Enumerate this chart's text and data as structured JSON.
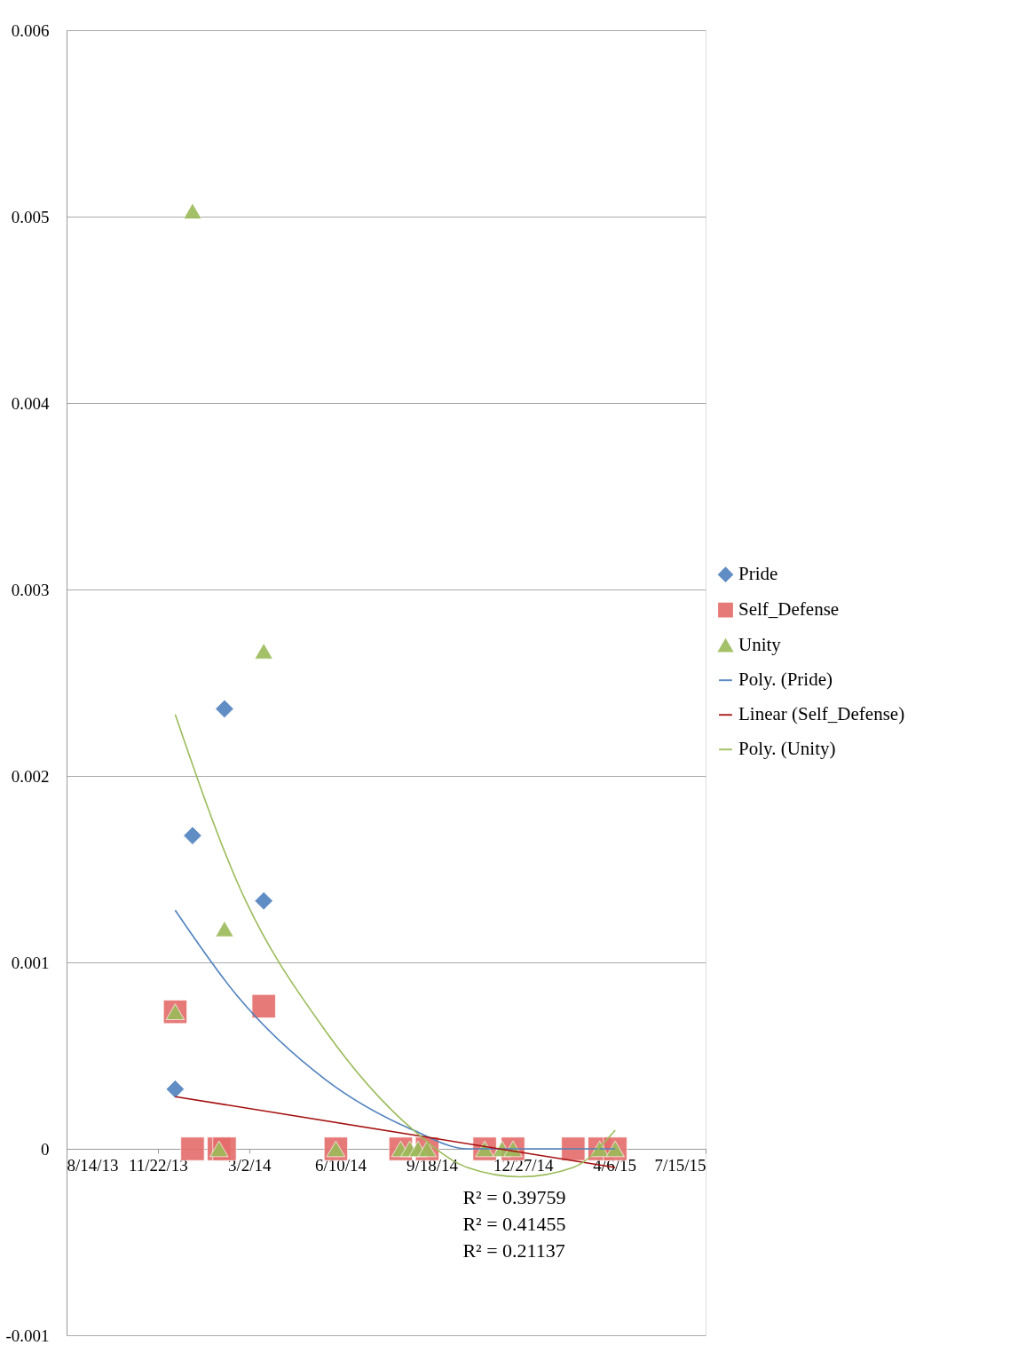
{
  "chart_data": {
    "type": "scatter",
    "xlim": [
      "2013-08-14",
      "2015-07-15"
    ],
    "xticks": [
      {
        "value": "2013-08-14",
        "label": "8/14/13"
      },
      {
        "value": "2013-11-22",
        "label": "11/22/13"
      },
      {
        "value": "2014-03-02",
        "label": "3/2/14"
      },
      {
        "value": "2014-06-10",
        "label": "6/10/14"
      },
      {
        "value": "2014-09-18",
        "label": "9/18/14"
      },
      {
        "value": "2014-12-27",
        "label": "12/27/14"
      },
      {
        "value": "2015-04-06",
        "label": "4/6/15"
      },
      {
        "value": "2015-07-15",
        "label": "7/15/15"
      }
    ],
    "ylim": [
      -0.001,
      0.006
    ],
    "yticks": [
      -0.001,
      0,
      0.001,
      0.002,
      0.003,
      0.004,
      0.005,
      0.006
    ],
    "grid": "y",
    "legend": "right",
    "series": [
      {
        "name": "Pride",
        "marker": "diamond",
        "color": "#4f81bd",
        "x": [
          "2013-12-11",
          "2013-12-30",
          "2014-02-03",
          "2014-03-18"
        ],
        "values": [
          0.00032,
          0.00168,
          0.00236,
          0.00133
        ]
      },
      {
        "name": "Self_Defense",
        "marker": "square",
        "color": "#e46c6a",
        "x": [
          "2013-12-11",
          "2013-12-30",
          "2014-01-28",
          "2014-02-03",
          "2014-03-18",
          "2014-06-05",
          "2014-08-15",
          "2014-09-13",
          "2014-11-15",
          "2014-12-16",
          "2015-02-20",
          "2015-03-21",
          "2015-04-07"
        ],
        "values": [
          0.000735,
          0,
          0,
          0,
          0.000765,
          0,
          0,
          0,
          0,
          0,
          0,
          0,
          0
        ]
      },
      {
        "name": "Unity",
        "marker": "triangle",
        "color": "#9bbb59",
        "x": [
          "2013-12-11",
          "2013-12-30",
          "2014-01-28",
          "2014-02-03",
          "2014-03-18",
          "2014-06-05",
          "2014-08-15",
          "2014-08-25",
          "2014-09-03",
          "2014-09-13",
          "2014-11-15",
          "2014-12-04",
          "2014-12-16",
          "2015-03-21",
          "2015-04-07"
        ],
        "values": [
          0.000735,
          0.00503,
          0,
          0.00118,
          0.00267,
          0,
          0,
          0,
          0,
          0,
          0,
          0,
          0,
          0,
          0
        ]
      },
      {
        "name": "Poly. (Pride)",
        "type": "line",
        "color": "#4f81bd",
        "x": [
          "2013-12-11",
          "2014-02-17",
          "2014-05-25",
          "2014-08-29",
          "2014-10-27",
          "2014-12-24",
          "2015-02-20",
          "2015-04-07"
        ],
        "values": [
          0.00128,
          0.00082,
          0.00037,
          0.0001,
          0,
          0,
          0,
          0
        ]
      },
      {
        "name": "Linear (Self_Defense)",
        "type": "line",
        "color": "#a50f0f",
        "x": [
          "2013-12-11",
          "2015-04-07"
        ],
        "values": [
          0.00028,
          -0.0001
        ]
      },
      {
        "name": "Poly. (Unity)",
        "type": "line",
        "color": "#9bbb59",
        "x": [
          "2013-12-11",
          "2014-02-17",
          "2014-05-25",
          "2014-08-29",
          "2014-10-27",
          "2014-12-24",
          "2015-02-20",
          "2015-04-07"
        ],
        "values": [
          0.00233,
          0.00143,
          0.00063,
          0.0001,
          -0.0001,
          -0.00015,
          -0.0001,
          0.0001
        ]
      }
    ],
    "annotations": [
      "R² = 0.39759",
      "R² = 0.41455",
      "R² = 0.21137"
    ]
  }
}
